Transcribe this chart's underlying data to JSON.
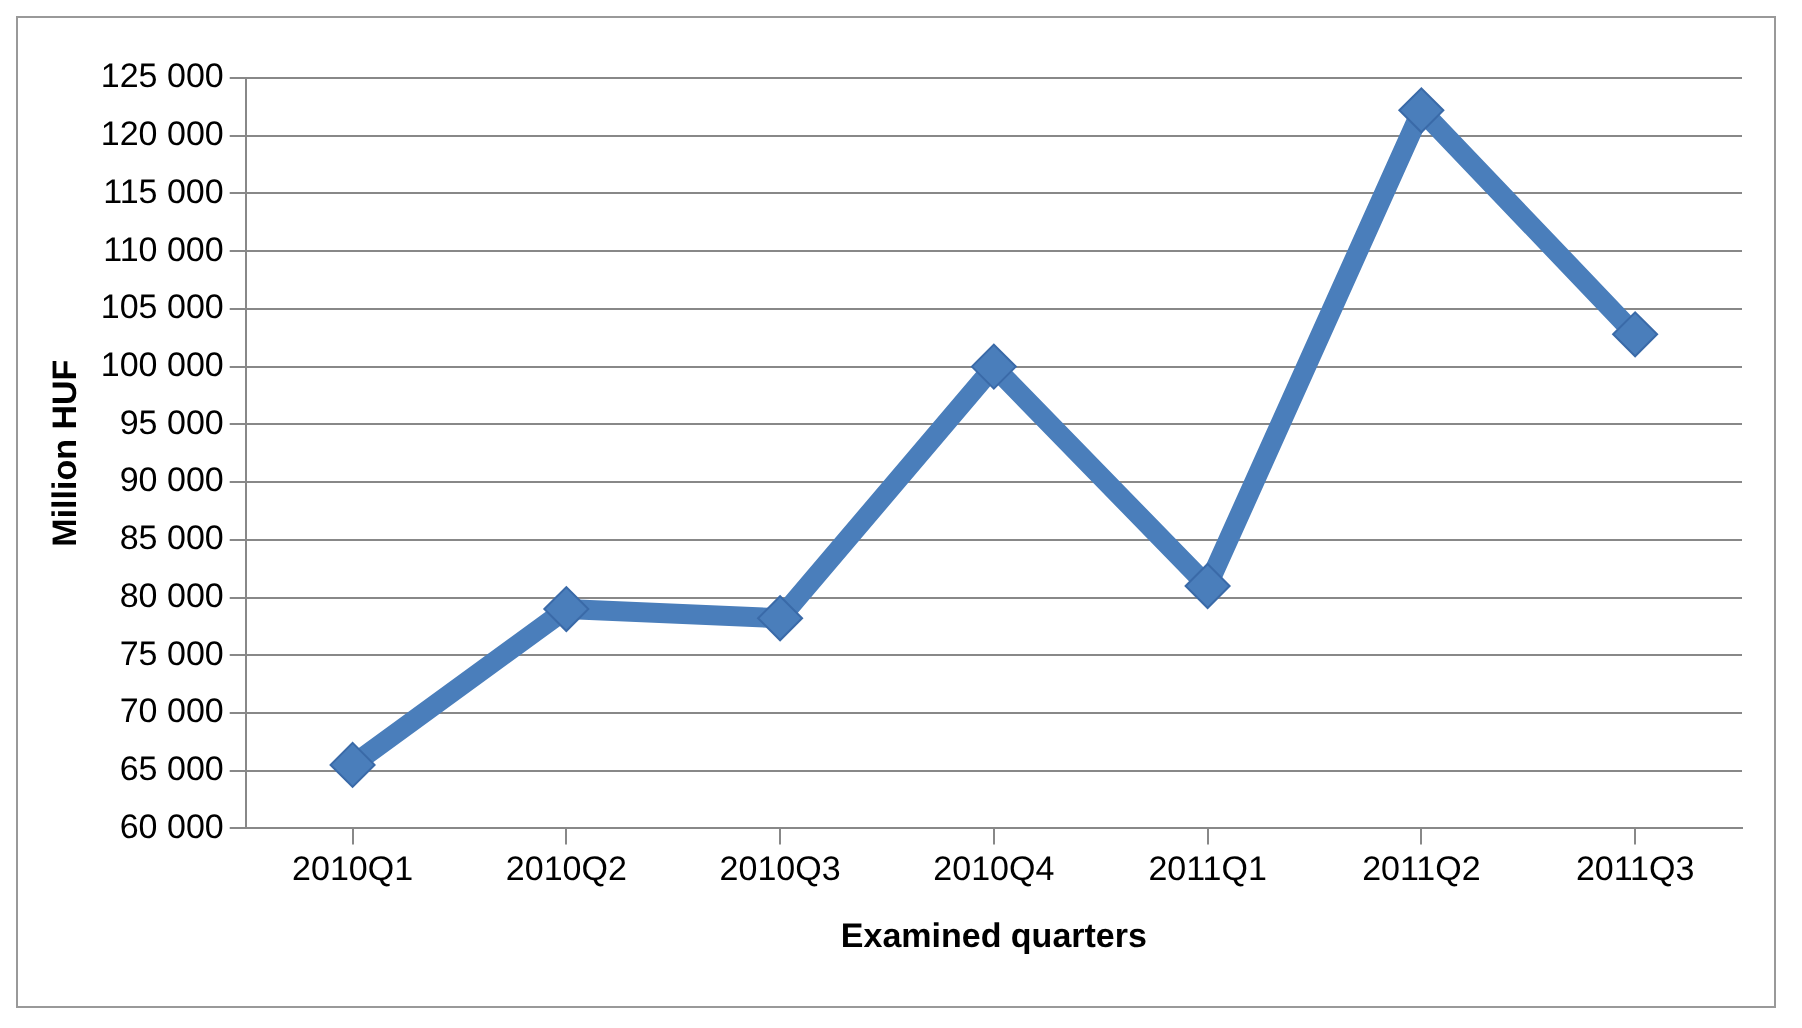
{
  "chart_data": {
    "type": "line",
    "xlabel": "Examined quarters",
    "ylabel": "Million HUF",
    "categories": [
      "2010Q1",
      "2010Q2",
      "2010Q3",
      "2010Q4",
      "2011Q1",
      "2011Q2",
      "2011Q3"
    ],
    "series": [
      {
        "color": "#4a7ebb",
        "values": [
          65500,
          79000,
          78200,
          100000,
          81000,
          122200,
          102800
        ]
      }
    ],
    "ylim": [
      60000,
      125000
    ],
    "yticks": [
      {
        "value": 60000,
        "label": "60 000"
      },
      {
        "value": 65000,
        "label": "65 000"
      },
      {
        "value": 70000,
        "label": "70 000"
      },
      {
        "value": 75000,
        "label": "75 000"
      },
      {
        "value": 80000,
        "label": "80 000"
      },
      {
        "value": 85000,
        "label": "85 000"
      },
      {
        "value": 90000,
        "label": "90 000"
      },
      {
        "value": 95000,
        "label": "95 000"
      },
      {
        "value": 100000,
        "label": "100 000"
      },
      {
        "value": 105000,
        "label": "105 000"
      },
      {
        "value": 110000,
        "label": "110 000"
      },
      {
        "value": 115000,
        "label": "115 000"
      },
      {
        "value": 120000,
        "label": "120 000"
      },
      {
        "value": 125000,
        "label": "125 000"
      }
    ],
    "grid": "y",
    "legend": false,
    "marker": "diamond",
    "line_style": "solid"
  }
}
